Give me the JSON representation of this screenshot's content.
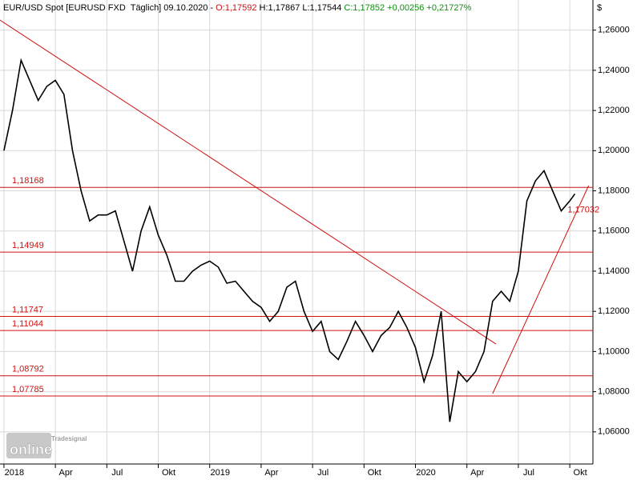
{
  "chart_data": {
    "type": "line",
    "header": [
      {
        "text": "EUR/USD Spot [EURUSD FXD  Täglich] 09.10.2020 - ",
        "color": "#000000"
      },
      {
        "text": "O:1,17592",
        "color": "#d01010"
      },
      {
        "text": " H:1,17867 L:1,17544",
        "color": "#000000"
      },
      {
        "text": " C:1,17852 +0,00256 +0,21727%",
        "color": "#109010"
      }
    ],
    "y_axis_label": "$",
    "logo": [
      "Tradesignal",
      "online"
    ],
    "xlim": [
      -0.23,
      34.35
    ],
    "ylim": [
      1.044,
      1.275
    ],
    "grid": true,
    "xticks": [
      {
        "value": 0,
        "label": "2018"
      },
      {
        "value": 3,
        "label": "Apr"
      },
      {
        "value": 6,
        "label": "Jul"
      },
      {
        "value": 9,
        "label": "Okt"
      },
      {
        "value": 12,
        "label": "2019"
      },
      {
        "value": 15,
        "label": "Apr"
      },
      {
        "value": 18,
        "label": "Jul"
      },
      {
        "value": 21,
        "label": "Okt"
      },
      {
        "value": 24,
        "label": "2020"
      },
      {
        "value": 27,
        "label": "Apr"
      },
      {
        "value": 30,
        "label": "Jul"
      },
      {
        "value": 33,
        "label": "Okt"
      }
    ],
    "yticks": [
      {
        "value": 1.06,
        "label": "1,06000"
      },
      {
        "value": 1.08,
        "label": "1,08000"
      },
      {
        "value": 1.1,
        "label": "1,10000"
      },
      {
        "value": 1.12,
        "label": "1,12000"
      },
      {
        "value": 1.14,
        "label": "1,14000"
      },
      {
        "value": 1.16,
        "label": "1,16000"
      },
      {
        "value": 1.18,
        "label": "1,18000"
      },
      {
        "value": 1.2,
        "label": "1,20000"
      },
      {
        "value": 1.22,
        "label": "1,22000"
      },
      {
        "value": 1.24,
        "label": "1,24000"
      },
      {
        "value": 1.26,
        "label": "1,26000"
      }
    ],
    "levels": [
      {
        "value": 1.18168,
        "label": "1,18168"
      },
      {
        "value": 1.14949,
        "label": "1,14949"
      },
      {
        "value": 1.11747,
        "label": "1,11747"
      },
      {
        "value": 1.11044,
        "label": "1,11044"
      },
      {
        "value": 1.08792,
        "label": "1,08792"
      },
      {
        "value": 1.07785,
        "label": "1,07785"
      }
    ],
    "level_color": "#d01010",
    "trendlines": [
      {
        "x": [
          -0.23,
          28.7
        ],
        "y": [
          1.265,
          1.1037
        ]
      },
      {
        "x": [
          28.5,
          34.1
        ],
        "y": [
          1.079,
          1.1826
        ]
      }
    ],
    "trend_label": {
      "value": 1.17032,
      "label": "1,17032",
      "x": 33.8
    },
    "series": [
      {
        "name": "EUR/USD",
        "color": "#000000",
        "x": [
          0,
          0.5,
          1,
          1.5,
          2,
          2.5,
          3,
          3.5,
          4,
          4.5,
          5,
          5.5,
          6,
          6.5,
          7,
          7.5,
          8,
          8.5,
          9,
          9.5,
          10,
          10.5,
          11,
          11.5,
          12,
          12.5,
          13,
          13.5,
          14,
          14.5,
          15,
          15.5,
          16,
          16.5,
          17,
          17.5,
          18,
          18.5,
          19,
          19.5,
          20,
          20.5,
          21,
          21.5,
          22,
          22.5,
          23,
          23.5,
          24,
          24.5,
          25,
          25.5,
          26,
          26.5,
          27,
          27.5,
          28,
          28.5,
          29,
          29.5,
          30,
          30.5,
          31,
          31.5,
          32,
          32.5,
          33,
          33.3
        ],
        "values": [
          1.2,
          1.22,
          1.245,
          1.235,
          1.225,
          1.232,
          1.235,
          1.228,
          1.2,
          1.18,
          1.165,
          1.168,
          1.168,
          1.17,
          1.155,
          1.14,
          1.16,
          1.172,
          1.158,
          1.148,
          1.135,
          1.135,
          1.14,
          1.143,
          1.145,
          1.142,
          1.134,
          1.135,
          1.13,
          1.125,
          1.122,
          1.115,
          1.12,
          1.132,
          1.135,
          1.12,
          1.11,
          1.115,
          1.1,
          1.096,
          1.105,
          1.115,
          1.108,
          1.1,
          1.108,
          1.112,
          1.12,
          1.112,
          1.102,
          1.085,
          1.098,
          1.12,
          1.065,
          1.09,
          1.085,
          1.09,
          1.1,
          1.125,
          1.13,
          1.125,
          1.14,
          1.175,
          1.185,
          1.19,
          1.18,
          1.17,
          1.175,
          1.1785
        ]
      }
    ]
  }
}
